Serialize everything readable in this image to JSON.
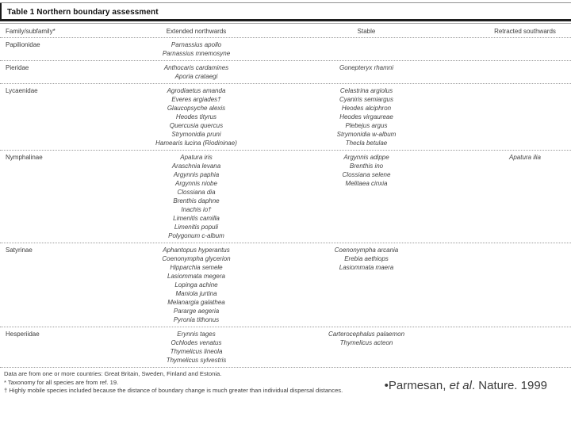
{
  "table": {
    "title": "Table 1 Northern boundary assessment",
    "columns": [
      "Family/subfamily*",
      "Extended northwards",
      "Stable",
      "Retracted southwards"
    ],
    "rows": [
      {
        "family": "Papilionidae",
        "extended": [
          "Parnassius apollo",
          "Parnassius mnemosyne"
        ],
        "stable": [],
        "retracted": []
      },
      {
        "family": "Pieridae",
        "extended": [
          "Anthocaris cardamines",
          "Aporia crataegi"
        ],
        "stable": [
          "Gonepteryx rhamni"
        ],
        "retracted": []
      },
      {
        "family": "Lycaenidae",
        "extended": [
          "Agrodiaetus amanda",
          "Everes argiades†",
          "Glaucopsyche alexis",
          "Heodes tityrus",
          "Quercusia quercus",
          "Strymonidia pruni",
          "Hamearis lucina (Riodininae)"
        ],
        "stable": [
          "Celastrina argiolus",
          "Cyaniris semiargus",
          "Heodes alciphron",
          "Heodes virgaureae",
          "Plebejus argus",
          "Strymonidia w-album",
          "Thecla betulae"
        ],
        "retracted": []
      },
      {
        "family": "Nymphalinae",
        "extended": [
          "Apatura iris",
          "Araschnia levana",
          "Argynnis paphia",
          "Argynnis niobe",
          "Clossiana dia",
          "Brenthis daphne",
          "Inachis io†",
          "Limenitis camilla",
          "Limenitis populi",
          "Polygonum c-album"
        ],
        "stable": [
          "Argynnis adippe",
          "Brenthis ino",
          "Clossiana selene",
          "Melitaea cinxia"
        ],
        "retracted": [
          "Apatura ilia"
        ]
      },
      {
        "family": "Satyrinae",
        "extended": [
          "Aphantopus hyperantus",
          "Coenonympha glycerion",
          "Hipparchia semele",
          "Lasiommata megera",
          "Lopinga achine",
          "Maniola jurtina",
          "Melanargia galathea",
          "Pararge aegeria",
          "Pyronia tithonus"
        ],
        "stable": [
          "Coenonympha arcania",
          "Erebia aethiops",
          "Lasiommata maera"
        ],
        "retracted": []
      },
      {
        "family": "Hesperiidae",
        "extended": [
          "Erynnis tages",
          "Ochlodes venatus",
          "Thymelicus lineola",
          "Thymelicus sylvestris"
        ],
        "stable": [
          "Carterocephalus palaemon",
          "Thymelicus acteon"
        ],
        "retracted": []
      }
    ],
    "footnotes": [
      "Data are from one or more countries: Great Britain, Sweden, Finland and Estonia.",
      "* Taxonomy for all species are from ref. 19.",
      "† Highly mobile species included because the distance of boundary change is much greater than individual dispersal distances."
    ]
  },
  "citation": {
    "bullet": "•",
    "prefix": "Parmesan, ",
    "etal": "et al",
    "suffix": ". Nature. 1999"
  }
}
